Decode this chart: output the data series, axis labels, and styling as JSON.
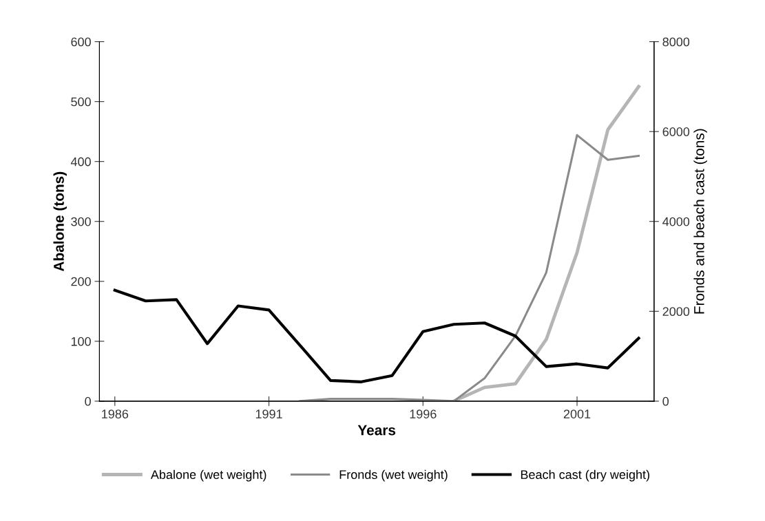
{
  "chart_data": {
    "type": "line",
    "xlabel": "Years",
    "ylabel": "Abalone (tons)",
    "y2label": "Fronds and beach cast (tons)",
    "x": [
      1986,
      1987,
      1988,
      1989,
      1990,
      1991,
      1992,
      1993,
      1994,
      1995,
      1996,
      1997,
      1998,
      1999,
      2000,
      2001,
      2002,
      2003
    ],
    "series": [
      {
        "name": "Abalone (wet weight)",
        "color": "#b5b5b5",
        "values": [
          null,
          null,
          null,
          null,
          null,
          null,
          null,
          null,
          null,
          null,
          null,
          0,
          23,
          29,
          103,
          248,
          453,
          525
        ]
      },
      {
        "name": "Fronds (wet weight)",
        "color": "#8a8a8a",
        "axis": "y2",
        "values": [
          null,
          null,
          null,
          null,
          null,
          null,
          0,
          50,
          50,
          50,
          30,
          0,
          510,
          1450,
          2860,
          5920,
          5370,
          5460
        ]
      },
      {
        "name": "Beach cast (dry weight)",
        "color": "#000000",
        "axis": "y2",
        "values": [
          2470,
          2230,
          2260,
          1280,
          2120,
          2030,
          1250,
          460,
          430,
          570,
          1550,
          1710,
          1740,
          1450,
          770,
          830,
          740,
          1400
        ]
      }
    ],
    "xlim": [
      1985.5,
      2003.5
    ],
    "xticks": [
      1986,
      1991,
      1996,
      2001
    ],
    "ylim": [
      0,
      600
    ],
    "yticks": [
      0,
      100,
      200,
      300,
      400,
      500,
      600
    ],
    "y2lim": [
      0,
      8000
    ],
    "y2ticks": [
      0,
      2000,
      4000,
      6000,
      8000
    ],
    "grid": false,
    "legend": "bottom",
    "marker": "none",
    "line_style": "solid"
  }
}
